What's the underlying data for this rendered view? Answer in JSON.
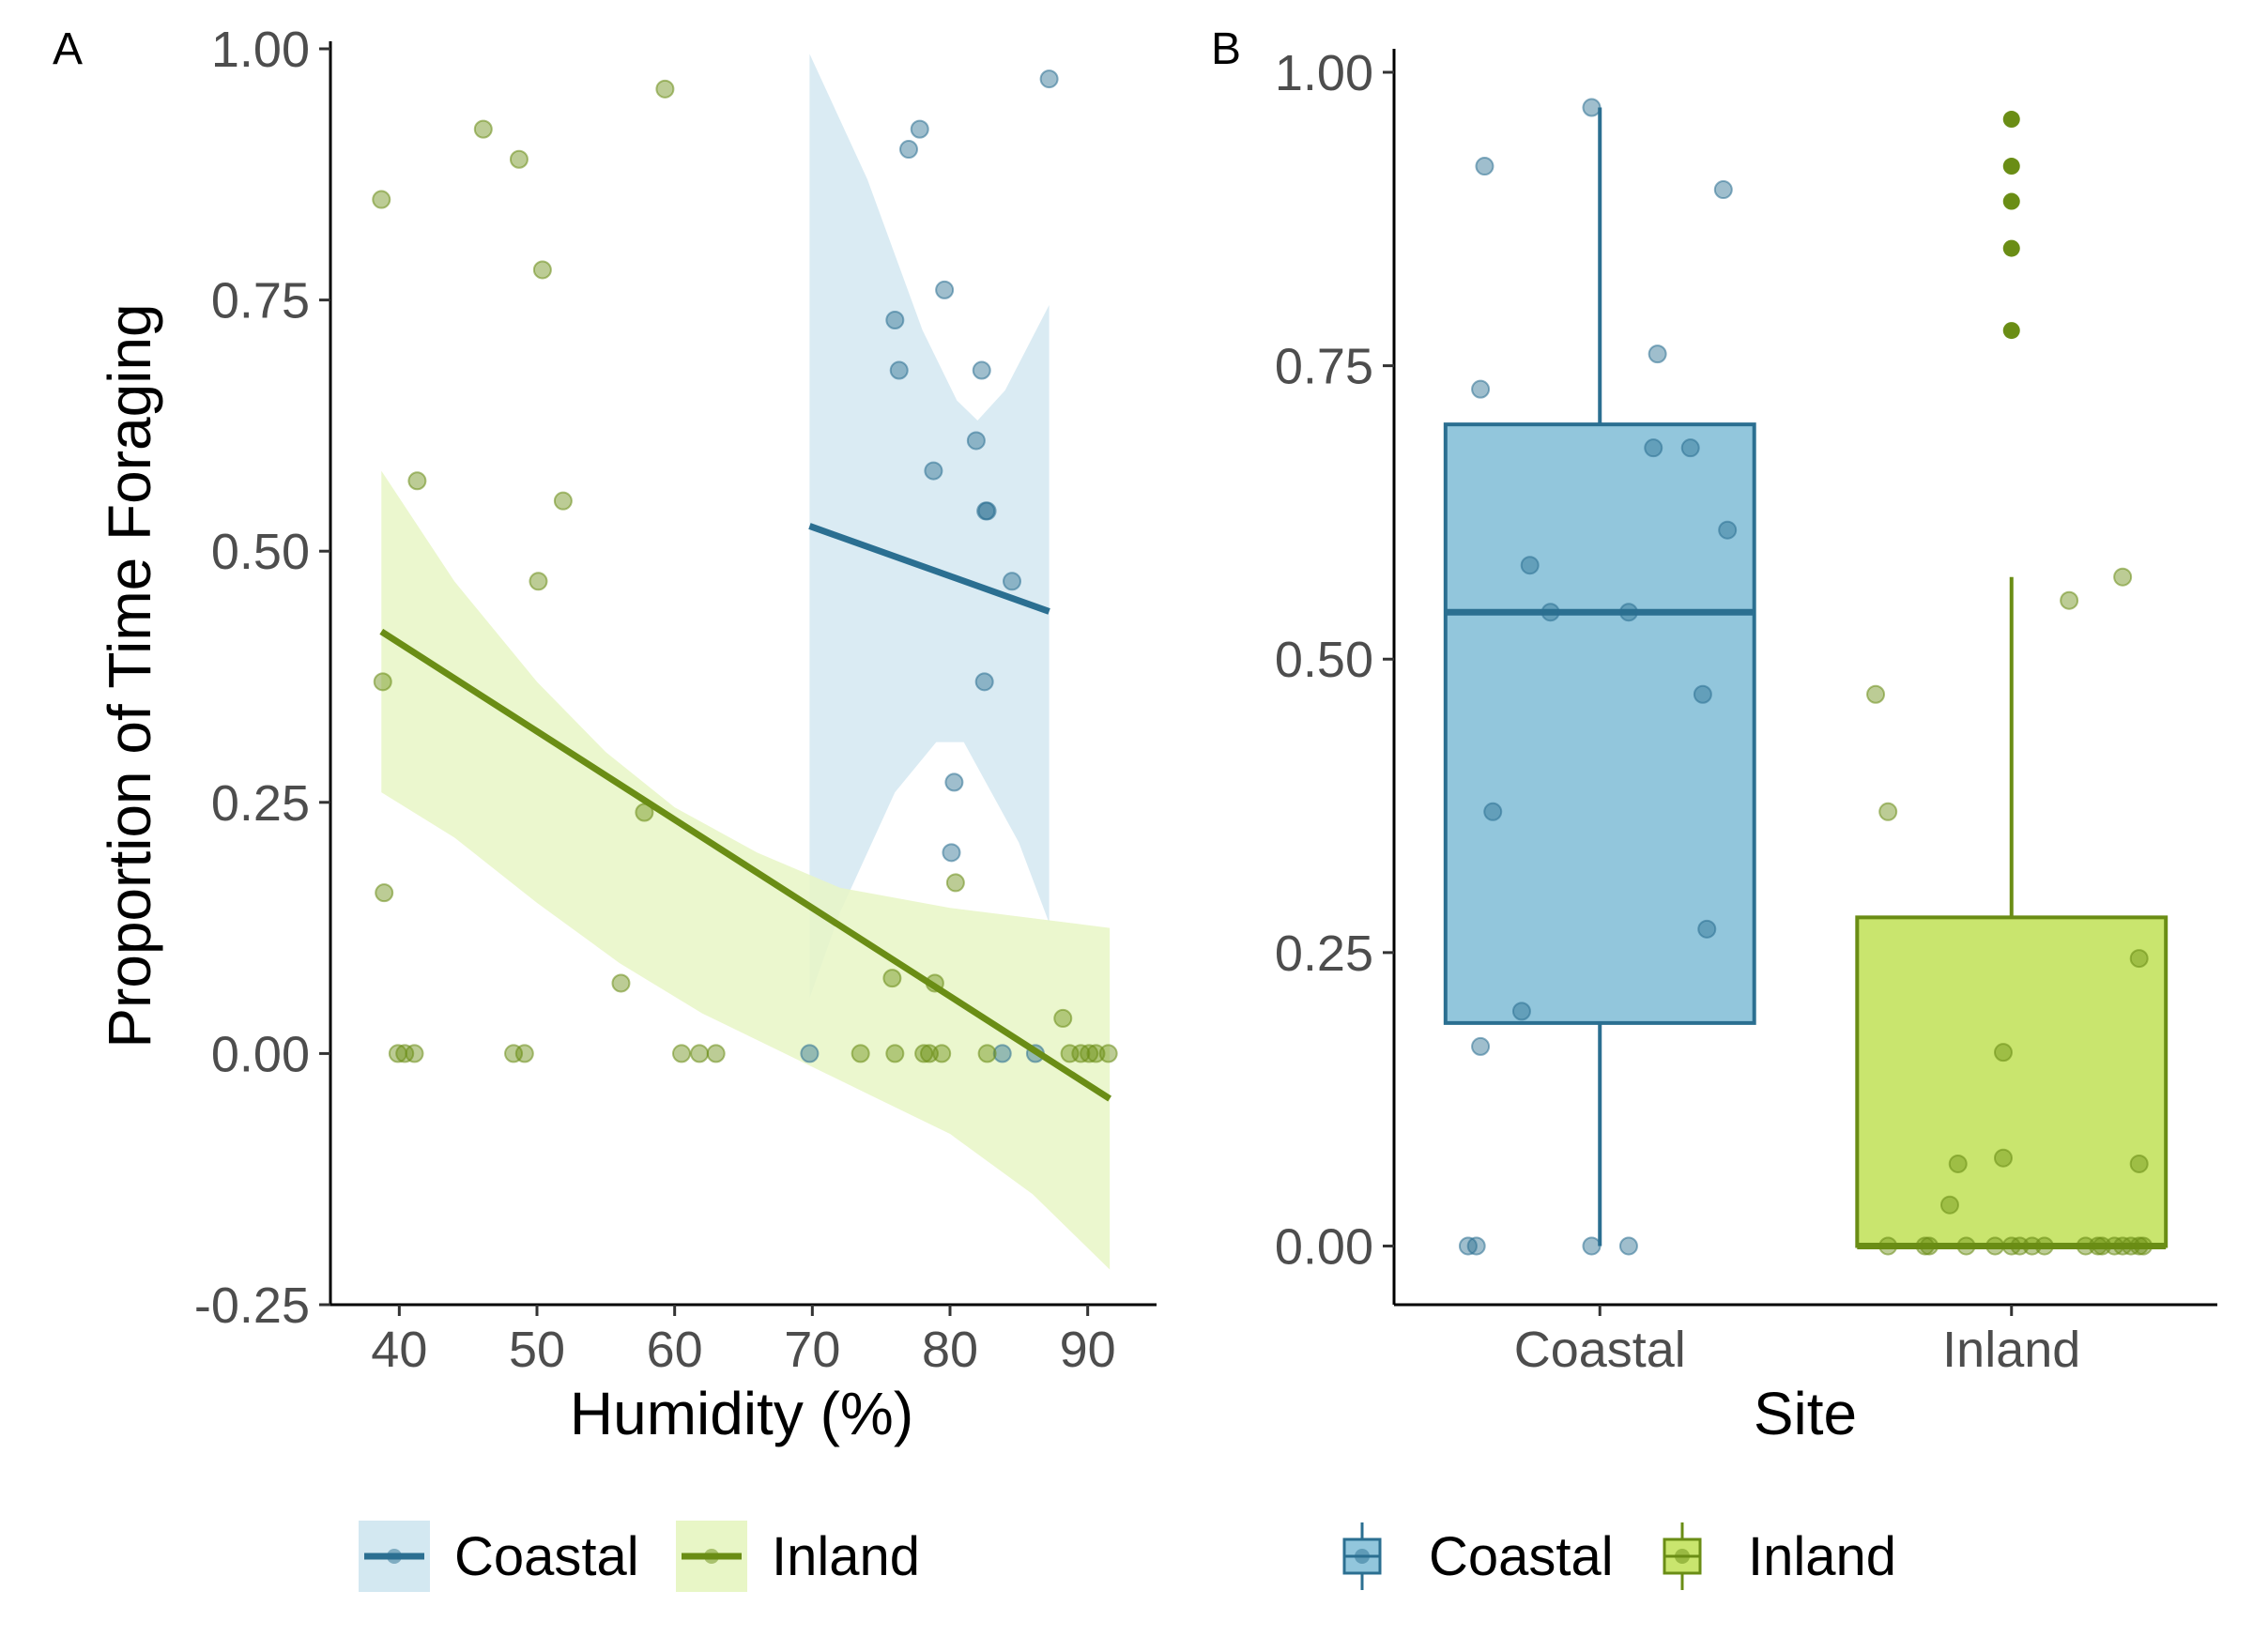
{
  "colors": {
    "coastal_line": "#2b6f91",
    "coastal_fill": "#92c6dc",
    "coastal_band": "#d3e8f1",
    "inland_line": "#6a8d15",
    "inland_fill": "#c9e56e",
    "inland_band": "#e8f6c6"
  },
  "chart_data": [
    {
      "type": "scatter",
      "panel_label": "A",
      "xlabel": "Humidity (%)",
      "ylabel": "Proportion of Time Foraging",
      "xlim": [
        35,
        95
      ],
      "ylim": [
        -0.25,
        1.0
      ],
      "x_ticks": [
        40,
        50,
        60,
        70,
        80,
        90
      ],
      "x_tick_labels": [
        "40",
        "50",
        "60",
        "70",
        "80",
        "90"
      ],
      "y_ticks": [
        -0.25,
        0,
        0.25,
        0.5,
        0.75,
        1.0
      ],
      "y_tick_labels": [
        "-0.25",
        "0.00",
        "0.25",
        "0.50",
        "0.75",
        "1.00"
      ],
      "grid": false,
      "legend_position": "bottom",
      "legend": [
        "Coastal",
        "Inland"
      ],
      "series": [
        {
          "name": "Coastal",
          "points": [
            [
              69.8,
              0
            ],
            [
              76,
              0.73
            ],
            [
              76.3,
              0.68
            ],
            [
              77,
              0.9
            ],
            [
              77.8,
              0.92
            ],
            [
              78.8,
              0.58
            ],
            [
              79.6,
              0.76
            ],
            [
              80.1,
              0.2
            ],
            [
              80.3,
              0.27
            ],
            [
              81.9,
              0.61
            ],
            [
              82.3,
              0.68
            ],
            [
              82.5,
              0.37
            ],
            [
              82.6,
              0.54
            ],
            [
              82.7,
              0.54
            ],
            [
              83.8,
              0
            ],
            [
              84.5,
              0.47
            ],
            [
              86.2,
              0
            ],
            [
              87.2,
              0.97
            ]
          ],
          "fit": [
            [
              69.8,
              0.525
            ],
            [
              87.2,
              0.44
            ]
          ],
          "ci_upper": [
            [
              69.8,
              0.995
            ],
            [
              74,
              0.87
            ],
            [
              78,
              0.72
            ],
            [
              80.5,
              0.65
            ],
            [
              82,
              0.63
            ],
            [
              84,
              0.66
            ],
            [
              87.2,
              0.745
            ]
          ],
          "ci_lower": [
            [
              69.8,
              0.055
            ],
            [
              72,
              0.14
            ],
            [
              76,
              0.26
            ],
            [
              79,
              0.31
            ],
            [
              81,
              0.31
            ],
            [
              83,
              0.26
            ],
            [
              85,
              0.21
            ],
            [
              87.2,
              0.13
            ]
          ]
        },
        {
          "name": "Inland",
          "points": [
            [
              38.7,
              0.85
            ],
            [
              38.8,
              0.37
            ],
            [
              38.9,
              0.16
            ],
            [
              39.9,
              0
            ],
            [
              40.4,
              0
            ],
            [
              41.1,
              0
            ],
            [
              41.3,
              0.57
            ],
            [
              46.1,
              0.92
            ],
            [
              48.3,
              0
            ],
            [
              48.7,
              0.89
            ],
            [
              49.1,
              0
            ],
            [
              50.1,
              0.47
            ],
            [
              50.4,
              0.78
            ],
            [
              51.9,
              0.55
            ],
            [
              56.1,
              0.07
            ],
            [
              57.8,
              0.24
            ],
            [
              59.3,
              0.96
            ],
            [
              60.5,
              0
            ],
            [
              61.8,
              0
            ],
            [
              63.0,
              0
            ],
            [
              73.5,
              0
            ],
            [
              75.8,
              0.075
            ],
            [
              76.0,
              0
            ],
            [
              78.1,
              0
            ],
            [
              78.5,
              0
            ],
            [
              78.9,
              0.07
            ],
            [
              79.4,
              0
            ],
            [
              80.4,
              0.17
            ],
            [
              82.7,
              0
            ],
            [
              88.2,
              0.035
            ],
            [
              88.7,
              0
            ],
            [
              89.5,
              0
            ],
            [
              90.1,
              0
            ],
            [
              90.6,
              0
            ],
            [
              91.5,
              0
            ]
          ],
          "fit": [
            [
              38.7,
              0.42
            ],
            [
              91.6,
              -0.045
            ]
          ],
          "ci_upper": [
            [
              38.7,
              0.58
            ],
            [
              44,
              0.47
            ],
            [
              50,
              0.37
            ],
            [
              55,
              0.3
            ],
            [
              60,
              0.245
            ],
            [
              66,
              0.2
            ],
            [
              72,
              0.165
            ],
            [
              80,
              0.145
            ],
            [
              91.6,
              0.125
            ]
          ],
          "ci_lower": [
            [
              38.7,
              0.26
            ],
            [
              44,
              0.215
            ],
            [
              50,
              0.15
            ],
            [
              56,
              0.09
            ],
            [
              62,
              0.04
            ],
            [
              68,
              0
            ],
            [
              74,
              -0.04
            ],
            [
              80,
              -0.08
            ],
            [
              86,
              -0.14
            ],
            [
              91.6,
              -0.215
            ]
          ]
        }
      ]
    },
    {
      "type": "box",
      "panel_label": "B",
      "xlabel": "Site",
      "ylabel": "",
      "categories": [
        "Coastal",
        "Inland"
      ],
      "ylim": [
        -0.05,
        1.02
      ],
      "y_ticks": [
        0,
        0.25,
        0.5,
        0.75,
        1.0
      ],
      "y_tick_labels": [
        "0.00",
        "0.25",
        "0.50",
        "0.75",
        "1.00"
      ],
      "grid": false,
      "legend_position": "bottom",
      "legend": [
        "Coastal",
        "Inland"
      ],
      "boxes": [
        {
          "name": "Coastal",
          "q1": 0.19,
          "median": 0.54,
          "q3": 0.7,
          "whisker_low": 0.0,
          "whisker_high": 0.97,
          "outliers": [],
          "jitter": [
            [
              -0.32,
              0
            ],
            [
              -0.3,
              0
            ],
            [
              -0.02,
              0
            ],
            [
              0.07,
              0
            ],
            [
              -0.29,
              0.17
            ],
            [
              -0.19,
              0.2
            ],
            [
              0.26,
              0.27
            ],
            [
              -0.26,
              0.37
            ],
            [
              0.25,
              0.47
            ],
            [
              -0.12,
              0.54
            ],
            [
              0.07,
              0.54
            ],
            [
              -0.17,
              0.58
            ],
            [
              0.31,
              0.61
            ],
            [
              0.13,
              0.68
            ],
            [
              0.22,
              0.68
            ],
            [
              -0.29,
              0.73
            ],
            [
              0.14,
              0.76
            ],
            [
              0.3,
              0.9
            ],
            [
              -0.28,
              0.92
            ],
            [
              -0.02,
              0.97
            ]
          ]
        },
        {
          "name": "Inland",
          "q1": 0.0,
          "median": 0.0,
          "q3": 0.28,
          "whisker_low": 0.0,
          "whisker_high": 0.57,
          "outliers": [
            0.78,
            0.85,
            0.89,
            0.92,
            0.96
          ],
          "jitter": [
            [
              -0.3,
              0
            ],
            [
              -0.21,
              0
            ],
            [
              -0.2,
              0
            ],
            [
              -0.11,
              0
            ],
            [
              -0.04,
              0
            ],
            [
              0.0,
              0
            ],
            [
              0.02,
              0
            ],
            [
              0.05,
              0
            ],
            [
              0.08,
              0
            ],
            [
              0.18,
              0
            ],
            [
              0.21,
              0
            ],
            [
              0.22,
              0
            ],
            [
              0.25,
              0
            ],
            [
              0.27,
              0
            ],
            [
              0.29,
              0
            ],
            [
              0.31,
              0
            ],
            [
              0.32,
              0
            ],
            [
              -0.15,
              0.035
            ],
            [
              -0.13,
              0.07
            ],
            [
              -0.02,
              0.075
            ],
            [
              0.31,
              0.07
            ],
            [
              -0.02,
              0.165
            ],
            [
              0.31,
              0.245
            ],
            [
              -0.3,
              0.37
            ],
            [
              -0.33,
              0.47
            ],
            [
              0.14,
              0.55
            ],
            [
              0.27,
              0.57
            ]
          ]
        }
      ]
    }
  ]
}
